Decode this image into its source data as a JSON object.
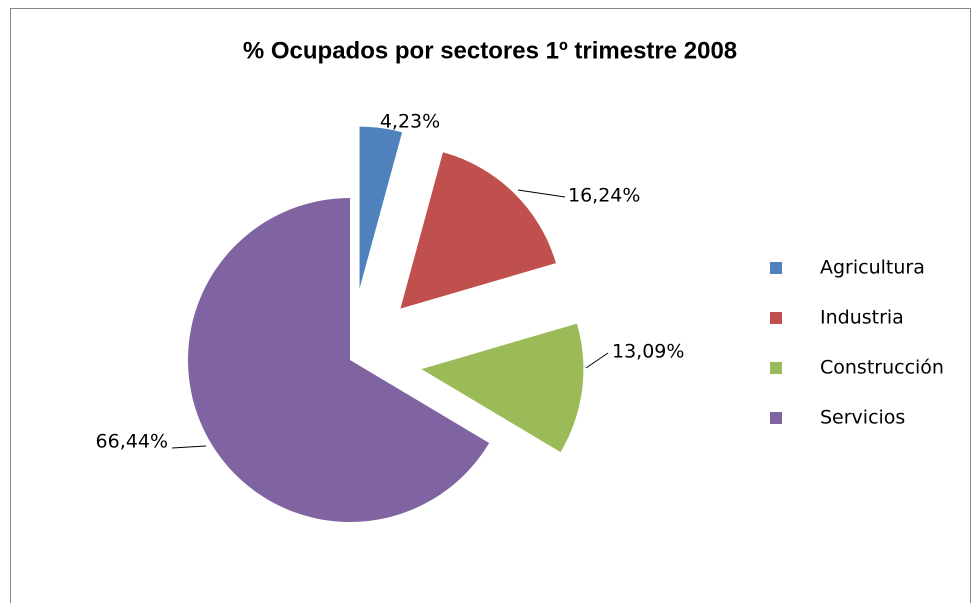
{
  "chart_data": {
    "type": "pie",
    "title": "% Ocupados por sectores 1º trimestre 2008",
    "categories": [
      "Agricultura",
      "Industria",
      "Construcción",
      "Servicios"
    ],
    "values": [
      4.23,
      16.24,
      13.09,
      66.44
    ],
    "value_labels": [
      "4,23%",
      "16,24%",
      "13,09%",
      "66,44%"
    ],
    "colors": [
      "#4f81bd",
      "#c0504d",
      "#9bbb59",
      "#8064a2"
    ],
    "exploded": [
      true,
      true,
      true,
      false
    ],
    "legend": "right"
  }
}
